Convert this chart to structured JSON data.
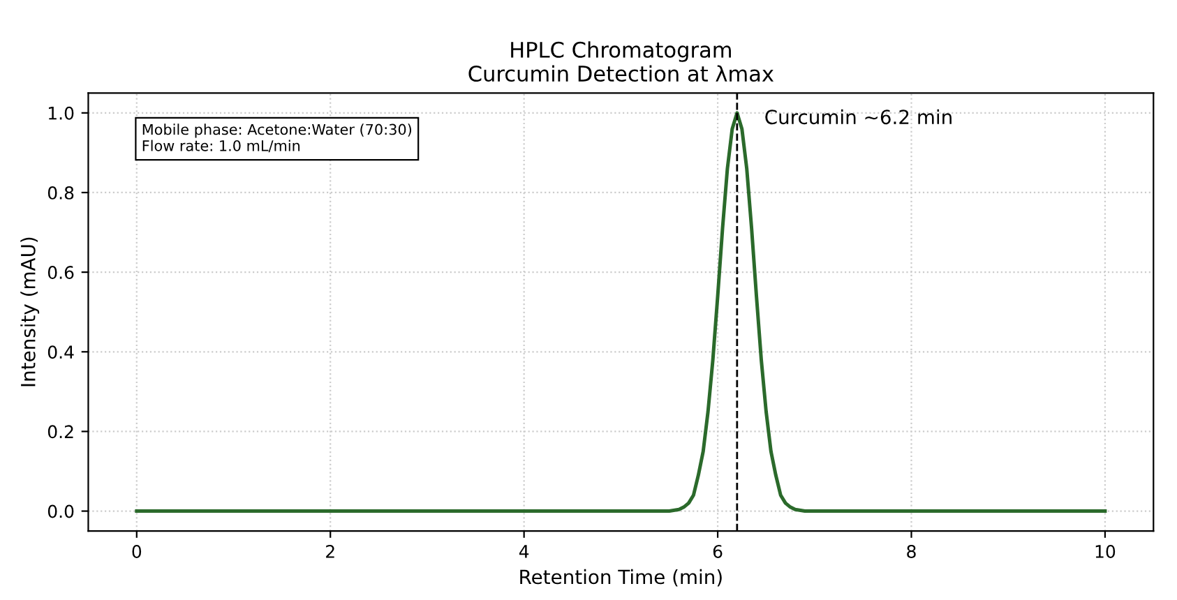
{
  "chart_data": {
    "type": "line",
    "title": "HPLC Chromatogram\nCurcumin Detection at λmax",
    "xlabel": "Retention Time (min)",
    "ylabel": "Intensity (mAU)",
    "series": [
      {
        "color": "#2b6a2b",
        "x": [
          0,
          1,
          2,
          3,
          4,
          5,
          5.5,
          5.6,
          5.65,
          5.7,
          5.75,
          5.8,
          5.85,
          5.9,
          5.95,
          6.0,
          6.05,
          6.1,
          6.15,
          6.2,
          6.25,
          6.3,
          6.35,
          6.4,
          6.45,
          6.5,
          6.55,
          6.6,
          6.65,
          6.7,
          6.75,
          6.8,
          6.9,
          7,
          8,
          9,
          10
        ],
        "values": [
          0,
          0,
          0,
          0,
          0,
          0,
          0,
          0.004,
          0.01,
          0.02,
          0.04,
          0.09,
          0.15,
          0.25,
          0.38,
          0.54,
          0.71,
          0.86,
          0.96,
          1.0,
          0.96,
          0.86,
          0.71,
          0.54,
          0.38,
          0.25,
          0.15,
          0.09,
          0.04,
          0.02,
          0.01,
          0.004,
          0,
          0,
          0,
          0,
          0
        ]
      }
    ],
    "xlim": [
      -0.5,
      10.5
    ],
    "xticks": [
      0,
      2,
      4,
      6,
      8,
      10
    ],
    "ylim": [
      -0.05,
      1.05
    ],
    "yticks": [
      {
        "value": 0,
        "label": "0.0"
      },
      0.2,
      0.4,
      0.6,
      0.8,
      {
        "value": 1,
        "label": "1.0"
      }
    ],
    "ref_lines": [
      {
        "axis": "x",
        "value": 6.2,
        "color": "#000000",
        "line_style": "dashed"
      }
    ],
    "annotations": [
      {
        "text": "Curcumin ~6.2 min",
        "x": 6.2,
        "y": 1.0
      },
      "Mobile phase: Acetone:Water (70:30)\nFlow rate: 1.0 mL/min"
    ],
    "grid": true,
    "line_style": "solid",
    "marker": "none"
  }
}
